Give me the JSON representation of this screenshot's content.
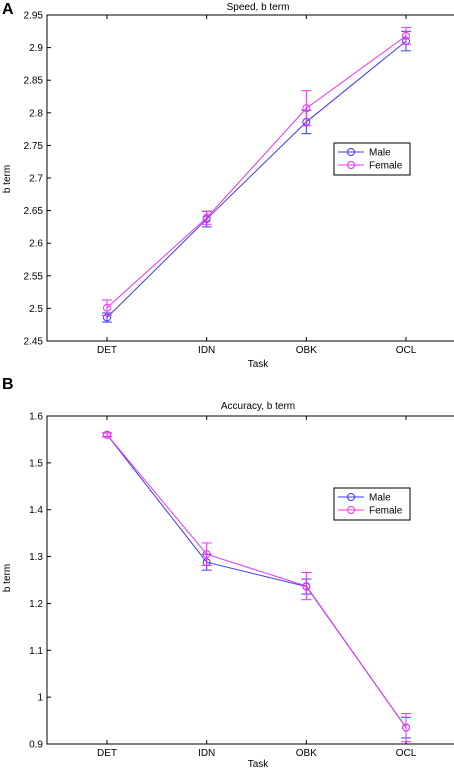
{
  "chart_data": [
    {
      "type": "line",
      "panel": "A",
      "title": "Speed, b term",
      "xlabel": "Task",
      "ylabel": "b term",
      "categories": [
        "DET",
        "IDN",
        "OBK",
        "OCL"
      ],
      "ylim": [
        2.45,
        2.95
      ],
      "yticks": [
        "2.45",
        "2.5",
        "2.55",
        "2.6",
        "2.65",
        "2.7",
        "2.75",
        "2.8",
        "2.85",
        "2.9",
        "2.95"
      ],
      "legend_position": "right",
      "grid": false,
      "series": [
        {
          "name": "Male",
          "color": "#3a3af5",
          "values": [
            2.486,
            2.637,
            2.786,
            2.91
          ],
          "errors": [
            0.007,
            0.012,
            0.018,
            0.015
          ]
        },
        {
          "name": "Female",
          "color": "#ee33ee",
          "values": [
            2.501,
            2.639,
            2.807,
            2.918
          ],
          "errors": [
            0.012,
            0.01,
            0.027,
            0.013
          ]
        }
      ]
    },
    {
      "type": "line",
      "panel": "B",
      "title": "Accuracy, b term",
      "xlabel": "Task",
      "ylabel": "b term",
      "categories": [
        "DET",
        "IDN",
        "OBK",
        "OCL"
      ],
      "ylim": [
        0.9,
        1.6
      ],
      "yticks": [
        "0.9",
        "1",
        "1.1",
        "1.2",
        "1.3",
        "1.4",
        "1.5",
        "1.6"
      ],
      "legend_position": "top-right",
      "grid": false,
      "series": [
        {
          "name": "Male",
          "color": "#3a3af5",
          "values": [
            1.56,
            1.288,
            1.236,
            0.935
          ],
          "errors": [
            0.004,
            0.017,
            0.016,
            0.022
          ]
        },
        {
          "name": "Female",
          "color": "#ee33ee",
          "values": [
            1.56,
            1.305,
            1.237,
            0.935
          ],
          "errors": [
            0.004,
            0.024,
            0.029,
            0.03
          ]
        }
      ]
    }
  ]
}
